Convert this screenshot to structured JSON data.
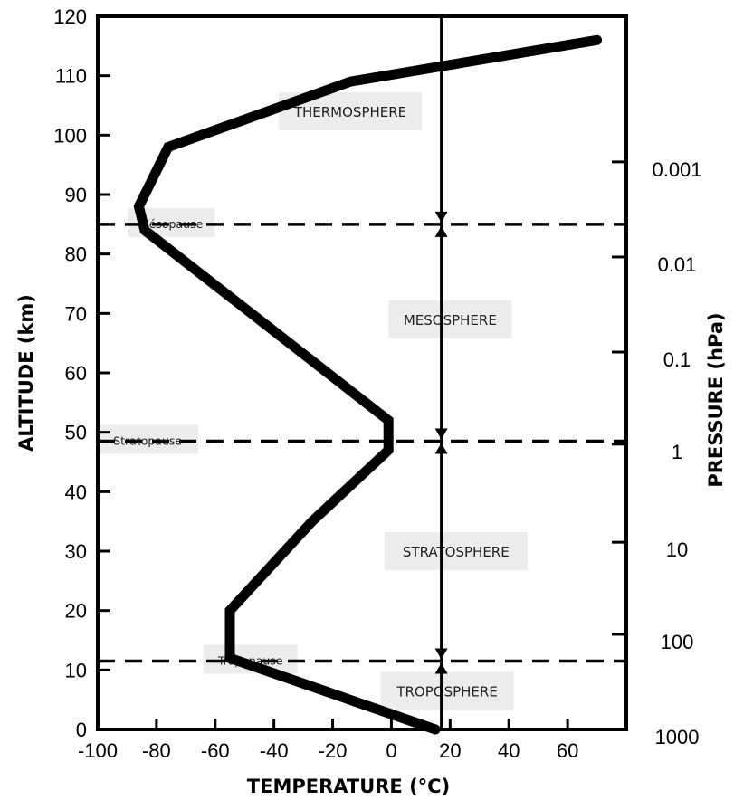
{
  "chart_data": {
    "type": "line",
    "xlabel": "TEMPERATURE (°C)",
    "ylabel": "ALTITUDE (km)",
    "y2label": "PRESSURE (hPa)",
    "xlim": [
      -100,
      80
    ],
    "ylim": [
      0,
      120
    ],
    "xticks": [
      -100,
      -80,
      -60,
      -40,
      -20,
      0,
      20,
      40,
      60
    ],
    "xtick_labels": [
      "-100",
      "-80",
      "-60",
      "-40",
      "-20",
      "0",
      "20",
      "40",
      "60"
    ],
    "yticks": [
      0,
      10,
      20,
      30,
      40,
      50,
      60,
      70,
      80,
      90,
      100,
      110,
      120
    ],
    "ytick_labels": [
      "0",
      "10",
      "20",
      "30",
      "40",
      "50",
      "60",
      "70",
      "80",
      "90",
      "100",
      "110",
      "120"
    ],
    "y2ticks": [
      {
        "label": "1000",
        "altitude": 0
      },
      {
        "label": "100",
        "altitude": 16
      },
      {
        "label": "10",
        "altitude": 31.5
      },
      {
        "label": "1",
        "altitude": 48
      },
      {
        "label": "0.1",
        "altitude": 63.5
      },
      {
        "label": "0.01",
        "altitude": 79.5
      },
      {
        "label": "0.001",
        "altitude": 95.5
      }
    ],
    "series": [
      {
        "x": [
          15,
          -55,
          -55,
          -27,
          -1,
          -1,
          -84,
          -86,
          -76,
          -14,
          70
        ],
        "y": [
          0,
          12,
          20,
          35,
          47,
          52,
          84,
          88,
          98,
          109,
          116
        ]
      }
    ],
    "boundaries": [
      {
        "label": "Tropopause",
        "altitude": 11.5,
        "label_x": -48
      },
      {
        "label": "Stratopause",
        "altitude": 48.5,
        "label_x": -83
      },
      {
        "label": "Mésopause",
        "altitude": 85,
        "label_x": -75
      }
    ],
    "layers": [
      {
        "label": "TROPOSPHERE",
        "altitude": 6.5,
        "x": 19
      },
      {
        "label": "STRATOSPHERE",
        "altitude": 30,
        "x": 22
      },
      {
        "label": "MESOSPHERE",
        "altitude": 69,
        "x": 20
      },
      {
        "label": "THERMOSPHERE",
        "altitude": 104,
        "x": -14
      }
    ],
    "reference_line_x": 17,
    "colors": {
      "line": "#000000",
      "label_box": "#ececec"
    }
  }
}
